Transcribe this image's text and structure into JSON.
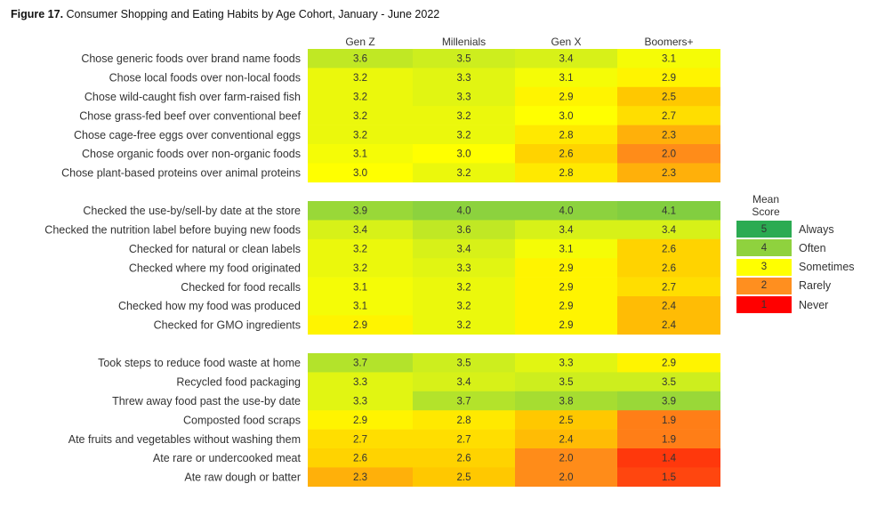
{
  "title": {
    "bold": "Figure 17.",
    "text": "Consumer Shopping and Eating Habits by Age Cohort, January - June 2022"
  },
  "legend": {
    "title": "Mean\nScore",
    "items": [
      {
        "value": "5",
        "label": "Always",
        "color": "#2bab52"
      },
      {
        "value": "4",
        "label": "Often",
        "color": "#8fd23e"
      },
      {
        "value": "3",
        "label": "Sometimes",
        "color": "#ffff00"
      },
      {
        "value": "2",
        "label": "Rarely",
        "color": "#ff8f1f"
      },
      {
        "value": "1",
        "label": "Never",
        "color": "#ff0000"
      }
    ]
  },
  "chart_data": {
    "type": "heatmap",
    "title": "Consumer Shopping and Eating Habits by Age Cohort, January - June 2022",
    "columns": [
      "Gen Z",
      "Millenials",
      "Gen X",
      "Boomers+"
    ],
    "color_scale": {
      "min": 1,
      "max": 5,
      "labels": {
        "5": "Always",
        "4": "Often",
        "3": "Sometimes",
        "2": "Rarely",
        "1": "Never"
      }
    },
    "groups": [
      {
        "rows": [
          {
            "label": "Chose generic foods over brand name foods",
            "values": [
              3.6,
              3.5,
              3.4,
              3.1
            ]
          },
          {
            "label": "Chose local foods over non-local foods",
            "values": [
              3.2,
              3.3,
              3.1,
              2.9
            ]
          },
          {
            "label": "Chose wild-caught fish over farm-raised fish",
            "values": [
              3.2,
              3.3,
              2.9,
              2.5
            ]
          },
          {
            "label": "Chose grass-fed beef over conventional beef",
            "values": [
              3.2,
              3.2,
              3.0,
              2.7
            ]
          },
          {
            "label": "Chose cage-free eggs over conventional eggs",
            "values": [
              3.2,
              3.2,
              2.8,
              2.3
            ]
          },
          {
            "label": "Chose organic foods over non-organic foods",
            "values": [
              3.1,
              3.0,
              2.6,
              2.0
            ]
          },
          {
            "label": "Chose plant-based proteins over animal proteins",
            "values": [
              3.0,
              3.2,
              2.8,
              2.3
            ]
          }
        ]
      },
      {
        "rows": [
          {
            "label": "Checked the use-by/sell-by date at the store",
            "values": [
              3.9,
              4.0,
              4.0,
              4.1
            ]
          },
          {
            "label": "Checked the nutrition label before buying new foods",
            "values": [
              3.4,
              3.6,
              3.4,
              3.4
            ]
          },
          {
            "label": "Checked for natural or clean labels",
            "values": [
              3.2,
              3.4,
              3.1,
              2.6
            ]
          },
          {
            "label": "Checked where my food originated",
            "values": [
              3.2,
              3.3,
              2.9,
              2.6
            ]
          },
          {
            "label": "Checked for food recalls",
            "values": [
              3.1,
              3.2,
              2.9,
              2.7
            ]
          },
          {
            "label": "Checked how my food was produced",
            "values": [
              3.1,
              3.2,
              2.9,
              2.4
            ]
          },
          {
            "label": "Checked for GMO ingredients",
            "values": [
              2.9,
              3.2,
              2.9,
              2.4
            ]
          }
        ]
      },
      {
        "rows": [
          {
            "label": "Took steps to reduce food waste at home",
            "values": [
              3.7,
              3.5,
              3.3,
              2.9
            ]
          },
          {
            "label": "Recycled food packaging",
            "values": [
              3.3,
              3.4,
              3.5,
              3.5
            ]
          },
          {
            "label": "Threw away food past the use-by date",
            "values": [
              3.3,
              3.7,
              3.8,
              3.9
            ]
          },
          {
            "label": "Composted food scraps",
            "values": [
              2.9,
              2.8,
              2.5,
              1.9
            ]
          },
          {
            "label": "Ate fruits and vegetables without washing them",
            "values": [
              2.7,
              2.7,
              2.4,
              1.9
            ]
          },
          {
            "label": "Ate rare or undercooked meat",
            "values": [
              2.6,
              2.6,
              2.0,
              1.4
            ]
          },
          {
            "label": "Ate raw dough or batter",
            "values": [
              2.3,
              2.5,
              2.0,
              1.5
            ]
          }
        ]
      }
    ]
  }
}
